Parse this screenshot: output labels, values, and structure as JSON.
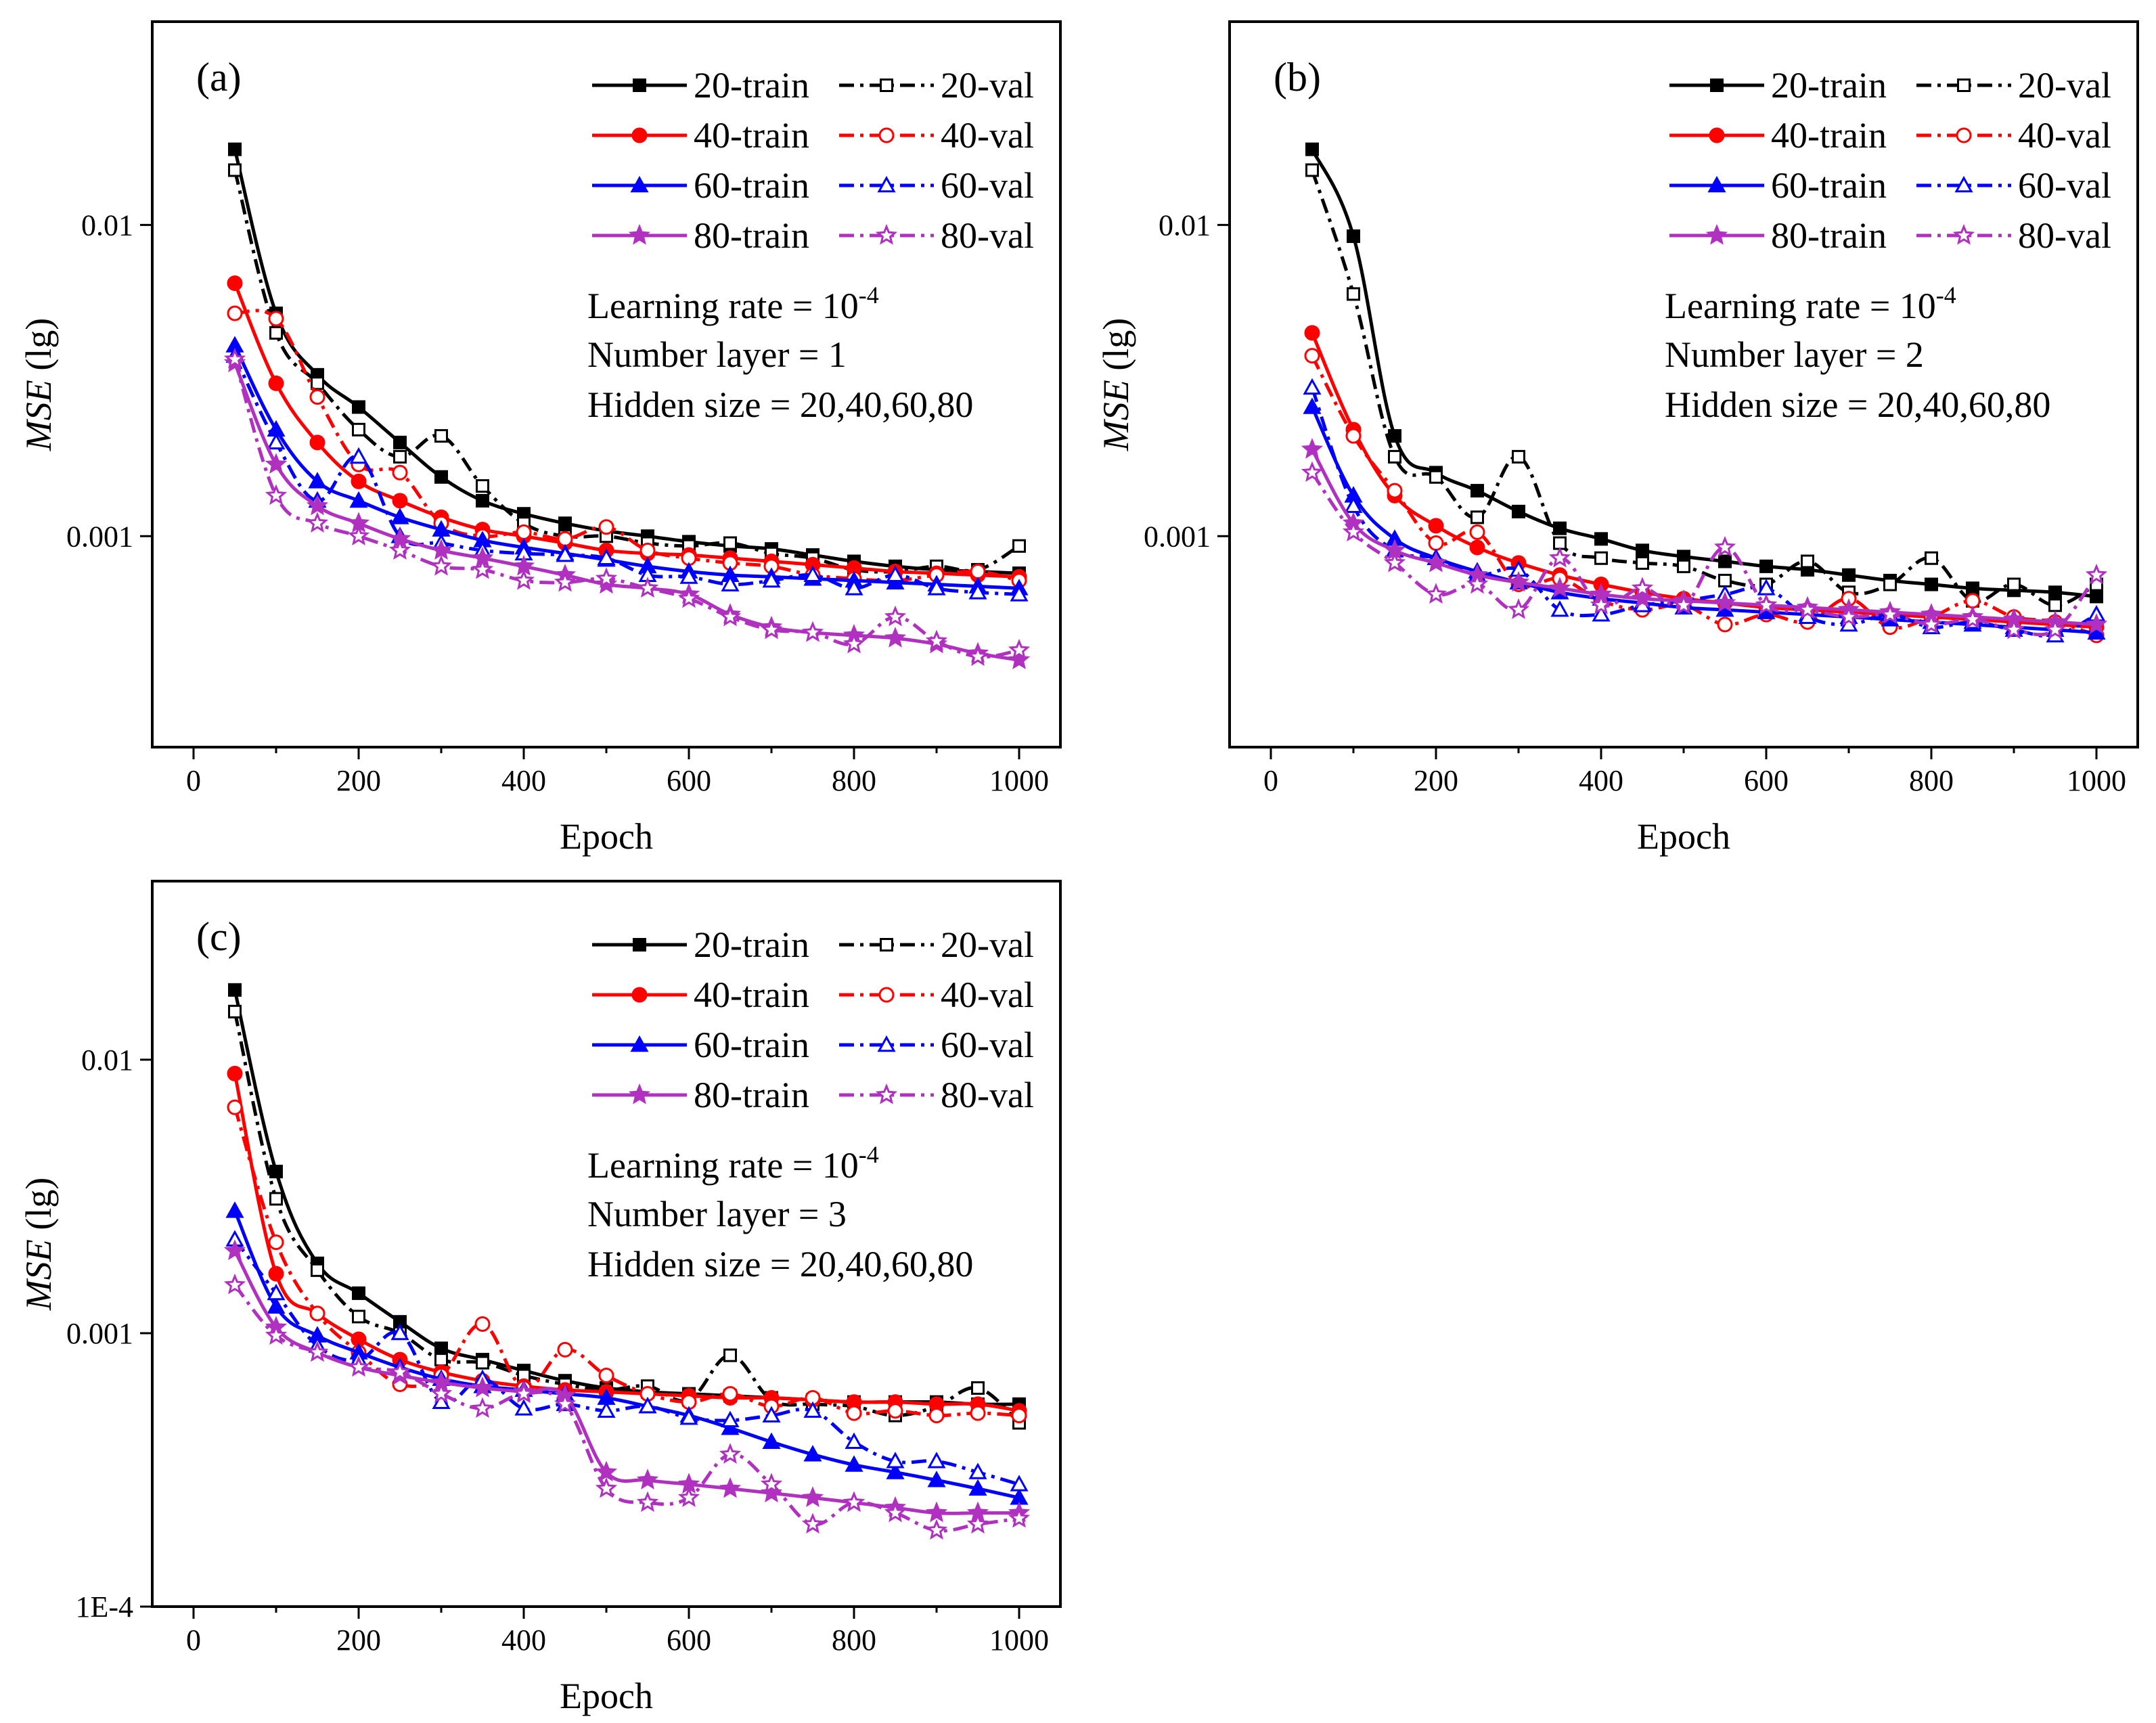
{
  "chart_data": [
    {
      "type": "line",
      "panel_label": "(a)",
      "xlabel": "Epoch",
      "ylabel_italic": "MSE",
      "ylabel_rest": " (lg)",
      "y_scale": "log",
      "xlim": [
        -50,
        1050
      ],
      "ylim": [
        0.00021,
        0.045
      ],
      "x_ticks": [
        0,
        200,
        400,
        600,
        800,
        1000
      ],
      "x_tick_labels": [
        "0",
        "200",
        "400",
        "600",
        "800",
        "1000"
      ],
      "y_ticks": [
        0.001,
        0.01
      ],
      "y_tick_labels": [
        "0.001",
        "0.01"
      ],
      "annotations": {
        "lr_prefix": "Learning rate = 10",
        "lr_exp": "-4",
        "layers": "Number layer = 1",
        "hidden": "Hidden size = 20,40,60,80"
      },
      "x": [
        50,
        100,
        150,
        200,
        250,
        300,
        350,
        400,
        450,
        500,
        550,
        600,
        650,
        700,
        750,
        800,
        850,
        900,
        950,
        1000
      ],
      "series": [
        {
          "name": "20-train",
          "color": "#000000",
          "marker": "square-filled",
          "dash": "solid",
          "values": [
            0.0175,
            0.0052,
            0.0033,
            0.0026,
            0.002,
            0.00155,
            0.0013,
            0.00118,
            0.0011,
            0.00104,
            0.001,
            0.00096,
            0.00093,
            0.00091,
            0.00087,
            0.00083,
            0.0008,
            0.00078,
            0.00077,
            0.00076
          ]
        },
        {
          "name": "20-val",
          "color": "#000000",
          "marker": "square-open",
          "dash": "dashdot",
          "values": [
            0.015,
            0.0045,
            0.0031,
            0.0022,
            0.0018,
            0.0021,
            0.00145,
            0.0011,
            0.001,
            0.001,
            0.00095,
            0.00093,
            0.00095,
            0.00088,
            0.00085,
            0.00078,
            0.00077,
            0.0008,
            0.00078,
            0.00093
          ]
        },
        {
          "name": "40-train",
          "color": "#ff0000",
          "marker": "circle-filled",
          "dash": "solid",
          "values": [
            0.0065,
            0.0031,
            0.002,
            0.0015,
            0.0013,
            0.00115,
            0.00105,
            0.001,
            0.00095,
            0.0009,
            0.00088,
            0.00087,
            0.00085,
            0.00083,
            0.00081,
            0.00079,
            0.00077,
            0.00076,
            0.00075,
            0.00074
          ]
        },
        {
          "name": "40-val",
          "color": "#ff0000",
          "marker": "circle-open",
          "dash": "dashdot",
          "values": [
            0.0052,
            0.005,
            0.0028,
            0.0017,
            0.0016,
            0.0011,
            0.001,
            0.00103,
            0.00098,
            0.00107,
            0.0009,
            0.00085,
            0.00082,
            0.0008,
            0.00075,
            0.00073,
            0.00072,
            0.00075,
            0.00077,
            0.00072
          ]
        },
        {
          "name": "60-train",
          "color": "#0000ff",
          "marker": "triangle-filled",
          "dash": "solid",
          "values": [
            0.0041,
            0.0022,
            0.0015,
            0.0013,
            0.00115,
            0.00105,
            0.00097,
            0.00092,
            0.00088,
            0.00084,
            0.0008,
            0.00077,
            0.00075,
            0.00074,
            0.00073,
            0.00072,
            0.00071,
            0.0007,
            0.00069,
            0.00068
          ]
        },
        {
          "name": "60-val",
          "color": "#0000ff",
          "marker": "triangle-open",
          "dash": "dashdot",
          "values": [
            0.0038,
            0.002,
            0.0013,
            0.0018,
            0.001,
            0.00095,
            0.0009,
            0.00088,
            0.00087,
            0.00085,
            0.00075,
            0.00074,
            0.0007,
            0.00072,
            0.00075,
            0.00068,
            0.00075,
            0.00068,
            0.00066,
            0.00065
          ]
        },
        {
          "name": "80-train",
          "color": "#b030c0",
          "marker": "star-filled",
          "dash": "solid",
          "values": [
            0.0036,
            0.0017,
            0.00125,
            0.0011,
            0.00098,
            0.0009,
            0.00085,
            0.0008,
            0.00075,
            0.0007,
            0.00068,
            0.00065,
            0.00056,
            0.00051,
            0.00049,
            0.00048,
            0.00047,
            0.00045,
            0.00042,
            0.0004
          ]
        },
        {
          "name": "80-val",
          "color": "#b030c0",
          "marker": "star-open",
          "dash": "dashdot",
          "values": [
            0.0037,
            0.00135,
            0.0011,
            0.001,
            0.0009,
            0.0008,
            0.00078,
            0.00072,
            0.00071,
            0.00073,
            0.00068,
            0.00063,
            0.00055,
            0.0005,
            0.00049,
            0.00045,
            0.00055,
            0.00046,
            0.00041,
            0.00043
          ]
        }
      ]
    },
    {
      "type": "line",
      "panel_label": "(b)",
      "xlabel": "Epoch",
      "ylabel_italic": "MSE",
      "ylabel_rest": " (lg)",
      "y_scale": "log",
      "xlim": [
        -50,
        1050
      ],
      "ylim": [
        0.00021,
        0.045
      ],
      "x_ticks": [
        0,
        200,
        400,
        600,
        800,
        1000
      ],
      "x_tick_labels": [
        "0",
        "200",
        "400",
        "600",
        "800",
        "1000"
      ],
      "y_ticks": [
        0.001,
        0.01
      ],
      "y_tick_labels": [
        "0.001",
        "0.01"
      ],
      "annotations": {
        "lr_prefix": "Learning rate = 10",
        "lr_exp": "-4",
        "layers": "Number layer = 2",
        "hidden": "Hidden size = 20,40,60,80"
      },
      "x": [
        50,
        100,
        150,
        200,
        250,
        300,
        350,
        400,
        450,
        500,
        550,
        600,
        650,
        700,
        750,
        800,
        850,
        900,
        950,
        1000
      ],
      "series": [
        {
          "name": "20-train",
          "color": "#000000",
          "marker": "square-filled",
          "dash": "solid",
          "values": [
            0.0175,
            0.0092,
            0.0021,
            0.0016,
            0.0014,
            0.0012,
            0.00106,
            0.00098,
            0.0009,
            0.00086,
            0.00083,
            0.0008,
            0.00078,
            0.00075,
            0.00072,
            0.0007,
            0.00068,
            0.00067,
            0.00066,
            0.00064
          ]
        },
        {
          "name": "20-val",
          "color": "#000000",
          "marker": "square-open",
          "dash": "dashdot",
          "values": [
            0.015,
            0.006,
            0.0018,
            0.00155,
            0.00115,
            0.0018,
            0.00095,
            0.00085,
            0.00082,
            0.0008,
            0.00072,
            0.0007,
            0.00083,
            0.00066,
            0.0007,
            0.00085,
            0.00062,
            0.0007,
            0.0006,
            0.0007
          ]
        },
        {
          "name": "40-train",
          "color": "#ff0000",
          "marker": "circle-filled",
          "dash": "solid",
          "values": [
            0.0045,
            0.0022,
            0.00135,
            0.00108,
            0.00092,
            0.00082,
            0.00075,
            0.0007,
            0.00066,
            0.00063,
            0.00061,
            0.00059,
            0.00058,
            0.00057,
            0.00056,
            0.00055,
            0.00054,
            0.00053,
            0.00052,
            0.00051
          ]
        },
        {
          "name": "40-val",
          "color": "#ff0000",
          "marker": "circle-open",
          "dash": "dashdot",
          "values": [
            0.0038,
            0.0021,
            0.0014,
            0.00095,
            0.00103,
            0.0007,
            0.00073,
            0.00062,
            0.00058,
            0.0006,
            0.00052,
            0.00056,
            0.00053,
            0.00063,
            0.00051,
            0.00055,
            0.00062,
            0.00055,
            0.00053,
            0.00048
          ]
        },
        {
          "name": "60-train",
          "color": "#0000ff",
          "marker": "triangle-filled",
          "dash": "solid",
          "values": [
            0.0026,
            0.00135,
            0.00098,
            0.00085,
            0.00077,
            0.00071,
            0.00066,
            0.00063,
            0.00061,
            0.00059,
            0.00058,
            0.00057,
            0.00056,
            0.00055,
            0.00054,
            0.00053,
            0.00052,
            0.00051,
            0.0005,
            0.00049
          ]
        },
        {
          "name": "60-val",
          "color": "#0000ff",
          "marker": "triangle-open",
          "dash": "dashdot",
          "values": [
            0.003,
            0.00125,
            0.0009,
            0.00085,
            0.00075,
            0.00078,
            0.00058,
            0.00056,
            0.0006,
            0.00062,
            0.00065,
            0.00068,
            0.00055,
            0.00052,
            0.00056,
            0.00051,
            0.00053,
            0.0005,
            0.00048,
            0.00056
          ]
        },
        {
          "name": "80-train",
          "color": "#b030c0",
          "marker": "star-filled",
          "dash": "solid",
          "values": [
            0.0019,
            0.0011,
            0.0009,
            0.00082,
            0.00075,
            0.00071,
            0.00068,
            0.00065,
            0.00063,
            0.00062,
            0.00061,
            0.0006,
            0.00059,
            0.00058,
            0.00057,
            0.00056,
            0.00055,
            0.00054,
            0.00053,
            0.00052
          ]
        },
        {
          "name": "80-val",
          "color": "#b030c0",
          "marker": "star-open",
          "dash": "dashdot",
          "values": [
            0.0016,
            0.00103,
            0.00082,
            0.00065,
            0.0007,
            0.00058,
            0.00085,
            0.0006,
            0.00068,
            0.0006,
            0.00092,
            0.0006,
            0.00058,
            0.00055,
            0.00056,
            0.00052,
            0.00054,
            0.0005,
            0.0005,
            0.00075
          ]
        }
      ]
    },
    {
      "type": "line",
      "panel_label": "(c)",
      "xlabel": "Epoch",
      "ylabel_italic": "MSE",
      "ylabel_rest": " (lg)",
      "y_scale": "log",
      "xlim": [
        -50,
        1050
      ],
      "ylim": [
        0.0001,
        0.045
      ],
      "x_ticks": [
        0,
        200,
        400,
        600,
        800,
        1000
      ],
      "x_tick_labels": [
        "0",
        "200",
        "400",
        "600",
        "800",
        "1000"
      ],
      "y_ticks": [
        0.0001,
        0.001,
        0.01
      ],
      "y_tick_labels": [
        "1E-4",
        "0.001",
        "0.01"
      ],
      "annotations": {
        "lr_prefix": "Learning rate = 10",
        "lr_exp": "-4",
        "layers": "Number layer = 3",
        "hidden": "Hidden size = 20,40,60,80"
      },
      "x": [
        50,
        100,
        150,
        200,
        250,
        300,
        350,
        400,
        450,
        500,
        550,
        600,
        650,
        700,
        750,
        800,
        850,
        900,
        950,
        1000
      ],
      "series": [
        {
          "name": "20-train",
          "color": "#000000",
          "marker": "square-filled",
          "dash": "solid",
          "values": [
            0.018,
            0.0039,
            0.0018,
            0.0014,
            0.0011,
            0.00088,
            0.0008,
            0.00073,
            0.00067,
            0.00063,
            0.00061,
            0.0006,
            0.00059,
            0.00058,
            0.00057,
            0.00056,
            0.00056,
            0.00056,
            0.00055,
            0.00055
          ]
        },
        {
          "name": "20-val",
          "color": "#000000",
          "marker": "square-open",
          "dash": "dashdot",
          "values": [
            0.015,
            0.0031,
            0.0017,
            0.00115,
            0.001,
            0.0008,
            0.00078,
            0.0007,
            0.00065,
            0.00062,
            0.00064,
            0.00057,
            0.00083,
            0.00057,
            0.00055,
            0.00054,
            0.0005,
            0.00054,
            0.00063,
            0.00047
          ]
        },
        {
          "name": "40-train",
          "color": "#ff0000",
          "marker": "circle-filled",
          "dash": "solid",
          "values": [
            0.0089,
            0.00165,
            0.00118,
            0.00095,
            0.0008,
            0.00072,
            0.00067,
            0.00064,
            0.00062,
            0.00061,
            0.0006,
            0.00059,
            0.00058,
            0.00058,
            0.00057,
            0.00056,
            0.00056,
            0.00055,
            0.00055,
            0.00052
          ]
        },
        {
          "name": "40-val",
          "color": "#ff0000",
          "marker": "circle-open",
          "dash": "dashdot",
          "values": [
            0.0067,
            0.00215,
            0.00118,
            0.00085,
            0.00065,
            0.0007,
            0.00108,
            0.00063,
            0.00087,
            0.0007,
            0.0006,
            0.00056,
            0.0006,
            0.00054,
            0.00058,
            0.00051,
            0.00052,
            0.0005,
            0.00051,
            0.0005
          ]
        },
        {
          "name": "60-train",
          "color": "#0000ff",
          "marker": "triangle-filled",
          "dash": "solid",
          "values": [
            0.0028,
            0.00125,
            0.00098,
            0.00085,
            0.00075,
            0.00068,
            0.00064,
            0.00062,
            0.0006,
            0.00058,
            0.00054,
            0.0005,
            0.00045,
            0.0004,
            0.00036,
            0.00033,
            0.00031,
            0.00029,
            0.00027,
            0.00025
          ]
        },
        {
          "name": "60-val",
          "color": "#0000ff",
          "marker": "triangle-open",
          "dash": "dashdot",
          "values": [
            0.0022,
            0.0014,
            0.0009,
            0.0008,
            0.001,
            0.00056,
            0.00068,
            0.00053,
            0.00055,
            0.00052,
            0.00054,
            0.00049,
            0.00048,
            0.0005,
            0.00052,
            0.0004,
            0.00034,
            0.00034,
            0.00031,
            0.00028
          ]
        },
        {
          "name": "80-train",
          "color": "#b030c0",
          "marker": "star-filled",
          "dash": "solid",
          "values": [
            0.002,
            0.00105,
            0.00085,
            0.00075,
            0.0007,
            0.00066,
            0.00063,
            0.00061,
            0.00059,
            0.00031,
            0.00029,
            0.00028,
            0.00027,
            0.00026,
            0.00025,
            0.00024,
            0.00023,
            0.00022,
            0.00022,
            0.00022
          ]
        },
        {
          "name": "80-val",
          "color": "#b030c0",
          "marker": "star-open",
          "dash": "dashdot",
          "values": [
            0.0015,
            0.00098,
            0.00085,
            0.00075,
            0.00072,
            0.0006,
            0.00053,
            0.0006,
            0.00055,
            0.00027,
            0.00024,
            0.00025,
            0.00036,
            0.00028,
            0.0002,
            0.00024,
            0.00022,
            0.00019,
            0.0002,
            0.00021
          ]
        }
      ]
    }
  ]
}
